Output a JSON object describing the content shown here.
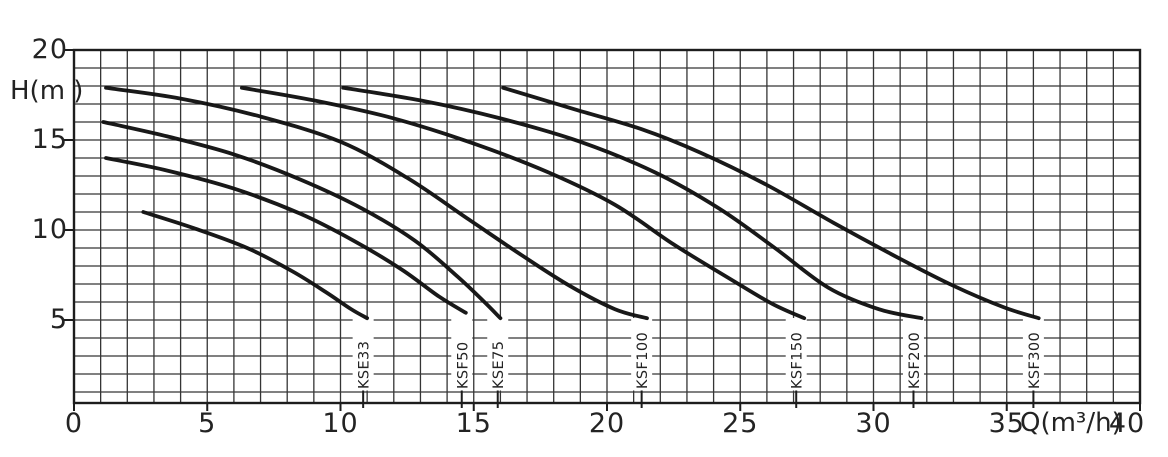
{
  "figure": {
    "background": "#ffffff",
    "ink_color": "#1d1d1d",
    "grid_color": "#242424",
    "curve_color": "#101010"
  },
  "chart_data": {
    "type": "line",
    "title": "",
    "xlabel": "Q(m³/h)",
    "ylabel": "H(m )",
    "xlim": [
      0,
      40
    ],
    "ylim": [
      0.4,
      20
    ],
    "x_major_ticks": [
      0,
      5,
      10,
      15,
      20,
      25,
      30,
      35,
      40
    ],
    "y_major_ticks": [
      5,
      10,
      15,
      20
    ],
    "minor_grid_step": {
      "x": 1,
      "y": 1
    },
    "grid": true,
    "legend_position": "labels-on-plot-bottom",
    "series": [
      {
        "name": "KSE33",
        "label_q": 10.85,
        "points": [
          [
            2.6,
            11.0
          ],
          [
            4.5,
            10.1
          ],
          [
            6.5,
            9.0
          ],
          [
            8.2,
            7.7
          ],
          [
            9.5,
            6.5
          ],
          [
            10.4,
            5.6
          ],
          [
            11.0,
            5.1
          ]
        ]
      },
      {
        "name": "KSF50",
        "label_q": 14.55,
        "points": [
          [
            1.2,
            14.0
          ],
          [
            3.5,
            13.3
          ],
          [
            6.0,
            12.3
          ],
          [
            8.5,
            10.9
          ],
          [
            10.5,
            9.4
          ],
          [
            12.3,
            7.8
          ],
          [
            13.7,
            6.3
          ],
          [
            14.7,
            5.4
          ]
        ]
      },
      {
        "name": "KSE75",
        "label_q": 15.9,
        "points": [
          [
            1.1,
            16.0
          ],
          [
            3.5,
            15.2
          ],
          [
            6.0,
            14.2
          ],
          [
            8.5,
            12.8
          ],
          [
            10.8,
            11.2
          ],
          [
            12.8,
            9.4
          ],
          [
            14.4,
            7.4
          ],
          [
            15.4,
            6.0
          ],
          [
            16.0,
            5.1
          ]
        ]
      },
      {
        "name": "KSF100",
        "label_q": 21.3,
        "points": [
          [
            1.2,
            17.9
          ],
          [
            4.0,
            17.3
          ],
          [
            7.0,
            16.3
          ],
          [
            10.0,
            14.9
          ],
          [
            12.5,
            12.9
          ],
          [
            14.8,
            10.6
          ],
          [
            16.8,
            8.6
          ],
          [
            18.6,
            6.9
          ],
          [
            20.3,
            5.6
          ],
          [
            21.5,
            5.1
          ]
        ]
      },
      {
        "name": "KSF150",
        "label_q": 27.1,
        "points": [
          [
            6.3,
            17.9
          ],
          [
            9.0,
            17.2
          ],
          [
            12.0,
            16.2
          ],
          [
            15.0,
            14.8
          ],
          [
            17.8,
            13.2
          ],
          [
            20.3,
            11.4
          ],
          [
            22.5,
            9.2
          ],
          [
            24.6,
            7.3
          ],
          [
            26.2,
            5.9
          ],
          [
            27.4,
            5.1
          ]
        ]
      },
      {
        "name": "KSF200",
        "label_q": 31.5,
        "points": [
          [
            10.1,
            17.9
          ],
          [
            13.0,
            17.2
          ],
          [
            16.0,
            16.2
          ],
          [
            19.0,
            14.9
          ],
          [
            21.8,
            13.2
          ],
          [
            24.2,
            11.2
          ],
          [
            26.3,
            9.0
          ],
          [
            28.3,
            6.8
          ],
          [
            30.2,
            5.6
          ],
          [
            31.8,
            5.1
          ]
        ]
      },
      {
        "name": "KSF300",
        "label_q": 36.0,
        "points": [
          [
            16.1,
            17.9
          ],
          [
            18.8,
            16.7
          ],
          [
            21.3,
            15.6
          ],
          [
            23.5,
            14.3
          ],
          [
            26.0,
            12.5
          ],
          [
            28.5,
            10.4
          ],
          [
            31.0,
            8.4
          ],
          [
            33.0,
            6.9
          ],
          [
            34.9,
            5.7
          ],
          [
            36.2,
            5.1
          ]
        ]
      }
    ]
  }
}
